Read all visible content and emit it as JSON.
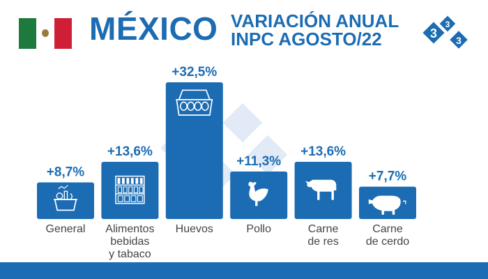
{
  "header": {
    "country": "MÉXICO",
    "subtitle_line1": "VARIACIÓN ANUAL",
    "subtitle_line2": "INPC AGOSTO/22",
    "logo_text": "3"
  },
  "colors": {
    "bar": "#1b6cb3",
    "text_blue": "#1b6cb3",
    "label_gray": "#444444",
    "watermark": "#c9daf0"
  },
  "chart_data": {
    "type": "bar",
    "categories": [
      "General",
      "Alimentos bebidas y tabaco",
      "Huevos",
      "Pollo",
      "Carne de res",
      "Carne de cerdo"
    ],
    "category_lines": [
      [
        "General"
      ],
      [
        "Alimentos",
        "bebidas",
        "y tabaco"
      ],
      [
        "Huevos"
      ],
      [
        "Pollo"
      ],
      [
        "Carne",
        "de res"
      ],
      [
        "Carne",
        "de cerdo"
      ]
    ],
    "values": [
      8.7,
      13.6,
      32.5,
      11.3,
      13.6,
      7.7
    ],
    "value_labels": [
      "+8,7%",
      "+13,6%",
      "+32,5%",
      "+11,3%",
      "+13,6%",
      "+7,7%"
    ],
    "icons": [
      "grocery-basket-icon",
      "store-shelf-icon",
      "egg-carton-icon",
      "chicken-icon",
      "cow-icon",
      "pig-icon"
    ],
    "ylim": [
      0,
      32.5
    ],
    "grid": false,
    "legend": "none"
  }
}
